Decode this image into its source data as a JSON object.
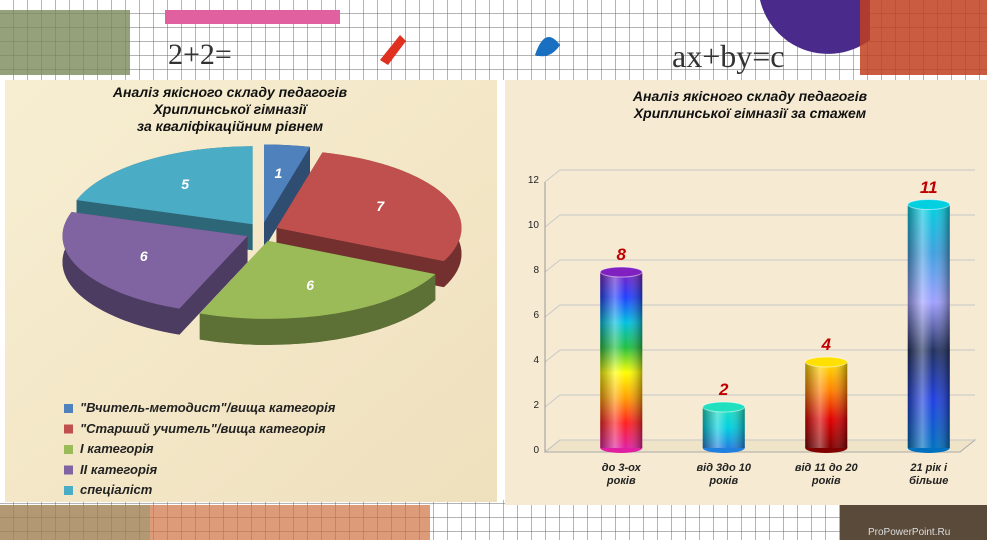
{
  "background_texts": [
    "2+2=",
    "ax+by=c"
  ],
  "watermark": "ProPowerPoint.Ru",
  "chart_data": [
    {
      "type": "pie",
      "title": "Аналіз якісного складу педагогів\nХриплинської гімназії\nза кваліфікаційним рівнем",
      "series": [
        {
          "name": "\"Вчитель-методист\"/вища категорія",
          "color": "#4f81bd",
          "values": [
            1
          ]
        },
        {
          "name": "\"Старший учитель\"/вища категорія",
          "color": "#c0504d",
          "values": [
            7
          ]
        },
        {
          "name": "І категорія",
          "color": "#9bbb59",
          "values": [
            6
          ]
        },
        {
          "name": "ІІ категорія",
          "color": "#8064a2",
          "values": [
            6
          ]
        },
        {
          "name": "спеціаліст",
          "color": "#4bacc6",
          "values": [
            5
          ]
        }
      ],
      "legend": "bottom-left"
    },
    {
      "type": "bar",
      "title": "Аналіз якісного складу педагогів\nХриплинської  гімназії за стажем",
      "categories": [
        "до 3-ох\nроків",
        "від 3до 10\nроків",
        "від 11 до 20\nроків",
        "21 рік і\nбільше"
      ],
      "values": [
        8,
        2,
        4,
        11
      ],
      "bar_gradients": [
        [
          "#e020a0",
          "#ff2020",
          "#ffa000",
          "#ffff00",
          "#20c040",
          "#00c0e0",
          "#2040ff",
          "#8020c0"
        ],
        [
          "#2080e0",
          "#00d0e0",
          "#20e0c0"
        ],
        [
          "#800000",
          "#e00000",
          "#ff8000",
          "#ffe000"
        ],
        [
          "#0070c0",
          "#2040e0",
          "#203060",
          "#a0a0ff",
          "#40a0e0",
          "#00d0e0"
        ]
      ],
      "value_label_color": "#c00000",
      "ylim": [
        0,
        12
      ],
      "yticks": [
        0,
        2,
        4,
        6,
        8,
        10,
        12
      ],
      "grid": true
    }
  ]
}
